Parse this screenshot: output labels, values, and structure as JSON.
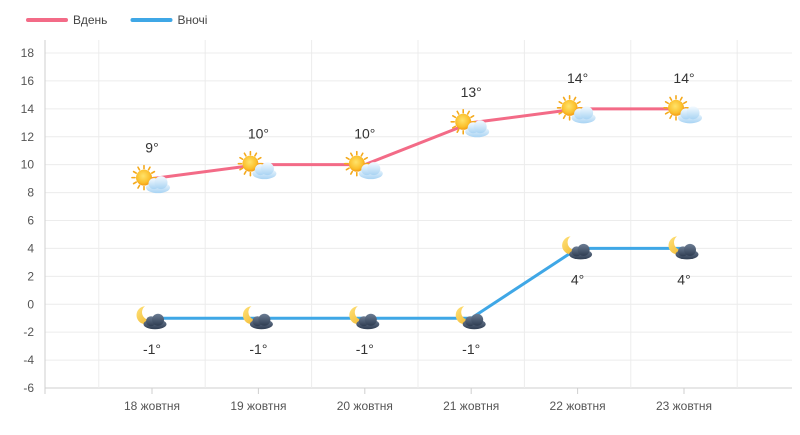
{
  "chart_data": {
    "type": "line",
    "title": "",
    "xlabel": "",
    "ylabel": "",
    "categories": [
      "18 жовтня",
      "19 жовтня",
      "20 жовтня",
      "21 жовтня",
      "22 жовтня",
      "23 жовтня"
    ],
    "ylim": [
      -6,
      18
    ],
    "yticks": [
      -6,
      -4,
      -2,
      0,
      2,
      4,
      6,
      8,
      10,
      12,
      14,
      16,
      18
    ],
    "grid": true,
    "legend_position": "top-left",
    "series": [
      {
        "name": "Вдень",
        "color": "#f36b87",
        "values": [
          9,
          10,
          10,
          13,
          14,
          14
        ],
        "labels": [
          "9°",
          "10°",
          "10°",
          "13°",
          "14°",
          "14°"
        ],
        "label_position": "above",
        "icons": [
          "sun-cloud-icon",
          "sun-cloud-icon",
          "sun-cloud-icon",
          "sun-cloud-icon",
          "sun-cloud-icon",
          "sun-cloud-icon"
        ]
      },
      {
        "name": "Вночі",
        "color": "#3fa7e6",
        "values": [
          -1,
          -1,
          -1,
          -1,
          4,
          4
        ],
        "labels": [
          "-1°",
          "-1°",
          "-1°",
          "-1°",
          "4°",
          "4°"
        ],
        "label_position": "below",
        "icons": [
          "moon-cloud-icon",
          "moon-cloud-icon",
          "moon-cloud-icon",
          "moon-cloud-icon",
          "moon-cloud-icon",
          "moon-cloud-icon"
        ]
      }
    ]
  }
}
